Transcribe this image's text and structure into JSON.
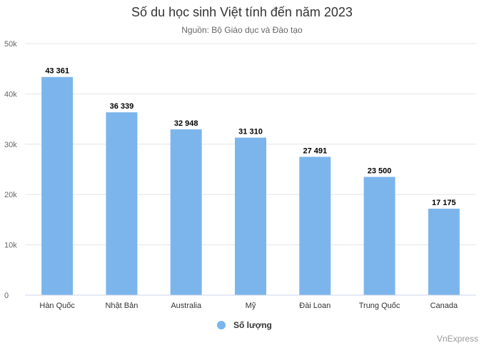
{
  "chart_data": {
    "type": "bar",
    "title": "Số du học sinh Việt tính đến năm 2023",
    "subtitle": "Nguồn: Bộ Giáo dục và Đào tạo",
    "categories": [
      "Hàn Quốc",
      "Nhật Bản",
      "Australia",
      "Mỹ",
      "Đài Loan",
      "Trung Quốc",
      "Canada"
    ],
    "series": [
      {
        "name": "Số lượng",
        "values": [
          43361,
          36339,
          32948,
          31310,
          27491,
          23500,
          17175
        ],
        "data_labels": [
          "43 361",
          "36 339",
          "32 948",
          "31 310",
          "27 491",
          "23 500",
          "17 175"
        ]
      }
    ],
    "ylim": [
      0,
      50000
    ],
    "yticks": [
      0,
      10000,
      20000,
      30000,
      40000,
      50000
    ],
    "ytick_labels": [
      "0",
      "10k",
      "20k",
      "30k",
      "40k",
      "50k"
    ],
    "grid": true,
    "legend_position": "bottom",
    "colors": {
      "bar": "#7cb5ec",
      "grid": "#e6e6e6",
      "axis_line": "#ccd6eb"
    }
  },
  "credit": "VnExpress"
}
